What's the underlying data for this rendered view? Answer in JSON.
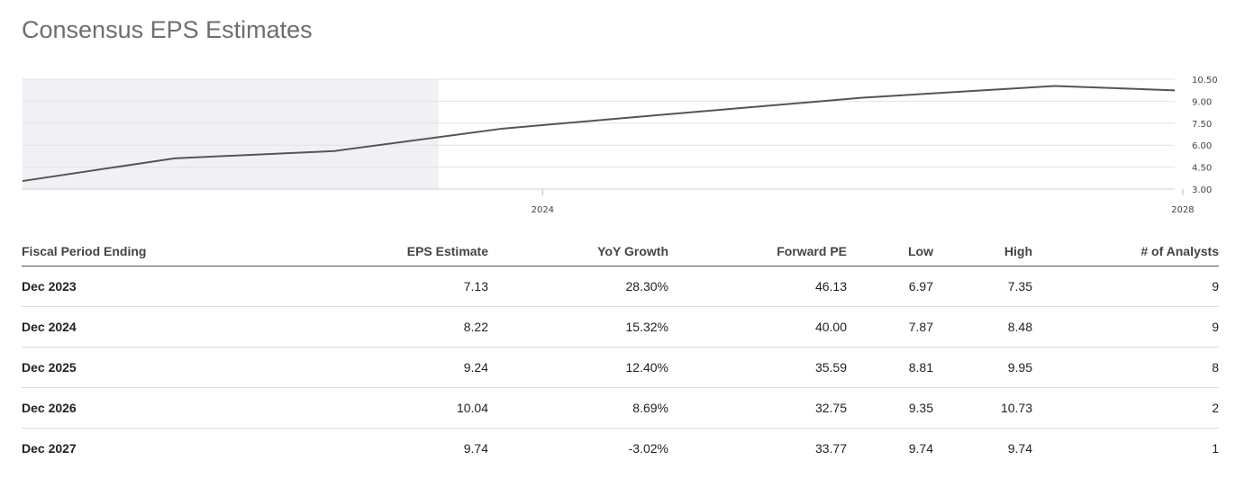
{
  "page": {
    "title": "Consensus EPS Estimates"
  },
  "colors": {
    "line": "#555555",
    "shade": "#f1f1f5",
    "grid": "#e2e2e2"
  },
  "chart_data": {
    "type": "line",
    "title": "",
    "xlabel": "",
    "ylabel": "",
    "x_ticks": [
      "2024",
      "2028"
    ],
    "y_ticks": [
      "10.50",
      "9.00",
      "7.50",
      "6.00",
      "4.50",
      "3.00"
    ],
    "ylim": [
      3.0,
      10.5
    ],
    "xlim": [
      2020.75,
      2027.95
    ],
    "shaded_region": [
      2020.75,
      2023.35
    ],
    "series": [
      {
        "x": [
          2020.75,
          2021.7,
          2022.7,
          2023.75,
          2024.9,
          2026.0,
          2027.2,
          2027.95
        ],
        "values": [
          3.55,
          5.1,
          5.6,
          7.13,
          8.22,
          9.24,
          10.04,
          9.74
        ]
      }
    ],
    "grid": true,
    "y_axis_position": "right"
  },
  "table": {
    "columns": [
      "Fiscal Period Ending",
      "EPS Estimate",
      "YoY Growth",
      "Forward PE",
      "Low",
      "High",
      "# of Analysts"
    ],
    "rows": [
      [
        "Dec 2023",
        "7.13",
        "28.30%",
        "46.13",
        "6.97",
        "7.35",
        "9"
      ],
      [
        "Dec 2024",
        "8.22",
        "15.32%",
        "40.00",
        "7.87",
        "8.48",
        "9"
      ],
      [
        "Dec 2025",
        "9.24",
        "12.40%",
        "35.59",
        "8.81",
        "9.95",
        "8"
      ],
      [
        "Dec 2026",
        "10.04",
        "8.69%",
        "32.75",
        "9.35",
        "10.73",
        "2"
      ],
      [
        "Dec 2027",
        "9.74",
        "-3.02%",
        "33.77",
        "9.74",
        "9.74",
        "1"
      ]
    ]
  }
}
